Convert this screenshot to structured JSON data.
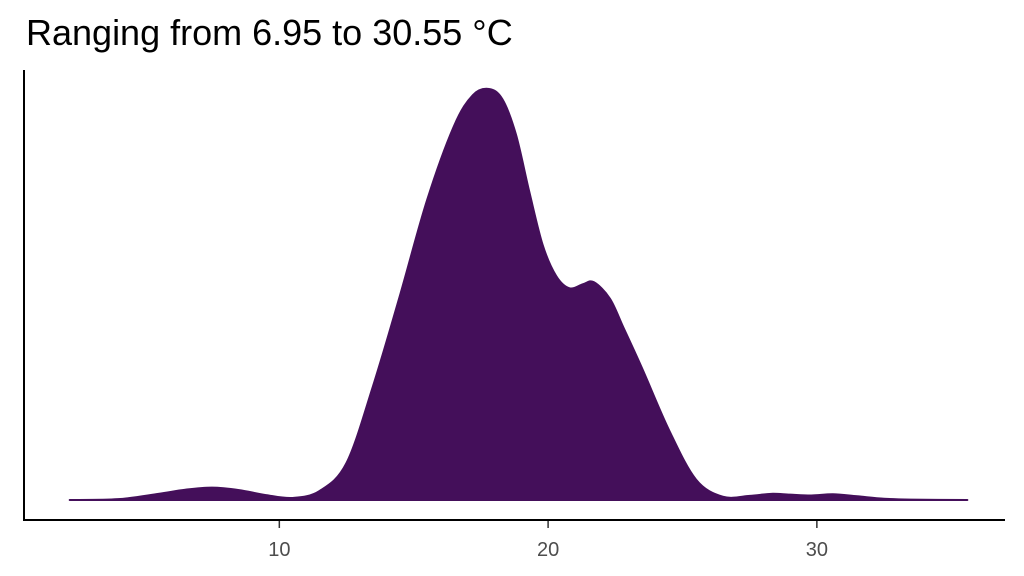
{
  "chart_data": {
    "type": "area",
    "title": "Ranging from 6.95 to 30.55 °C",
    "xlabel": "",
    "ylabel": "",
    "xlim": [
      0.5,
      37
    ],
    "ylim": [
      0,
      1
    ],
    "x_ticks": [
      10,
      20,
      30
    ],
    "x_tick_labels": [
      "10",
      "20",
      "30"
    ],
    "grid": false,
    "legend": "none",
    "series": [
      {
        "fill": "#440F5A",
        "x": [
          2.2,
          4,
          5.5,
          6.5,
          7.5,
          8.5,
          9.5,
          10.5,
          11.5,
          12.5,
          13.5,
          14.5,
          15.5,
          16.5,
          17.2,
          17.8,
          18.3,
          18.8,
          19.3,
          19.8,
          20.3,
          20.8,
          21.3,
          21.7,
          22.3,
          22.8,
          23.5,
          24.5,
          25.5,
          26.5,
          27.5,
          28.3,
          29,
          29.8,
          30.6,
          31.5,
          32.5,
          33.5,
          35.6
        ],
        "y": [
          0,
          0.002,
          0.015,
          0.025,
          0.03,
          0.024,
          0.012,
          0.005,
          0.022,
          0.09,
          0.28,
          0.5,
          0.73,
          0.91,
          0.985,
          1.0,
          0.975,
          0.89,
          0.75,
          0.62,
          0.545,
          0.515,
          0.525,
          0.53,
          0.49,
          0.42,
          0.32,
          0.17,
          0.05,
          0.008,
          0.01,
          0.015,
          0.013,
          0.011,
          0.014,
          0.009,
          0.003,
          0.001,
          0
        ]
      }
    ]
  }
}
